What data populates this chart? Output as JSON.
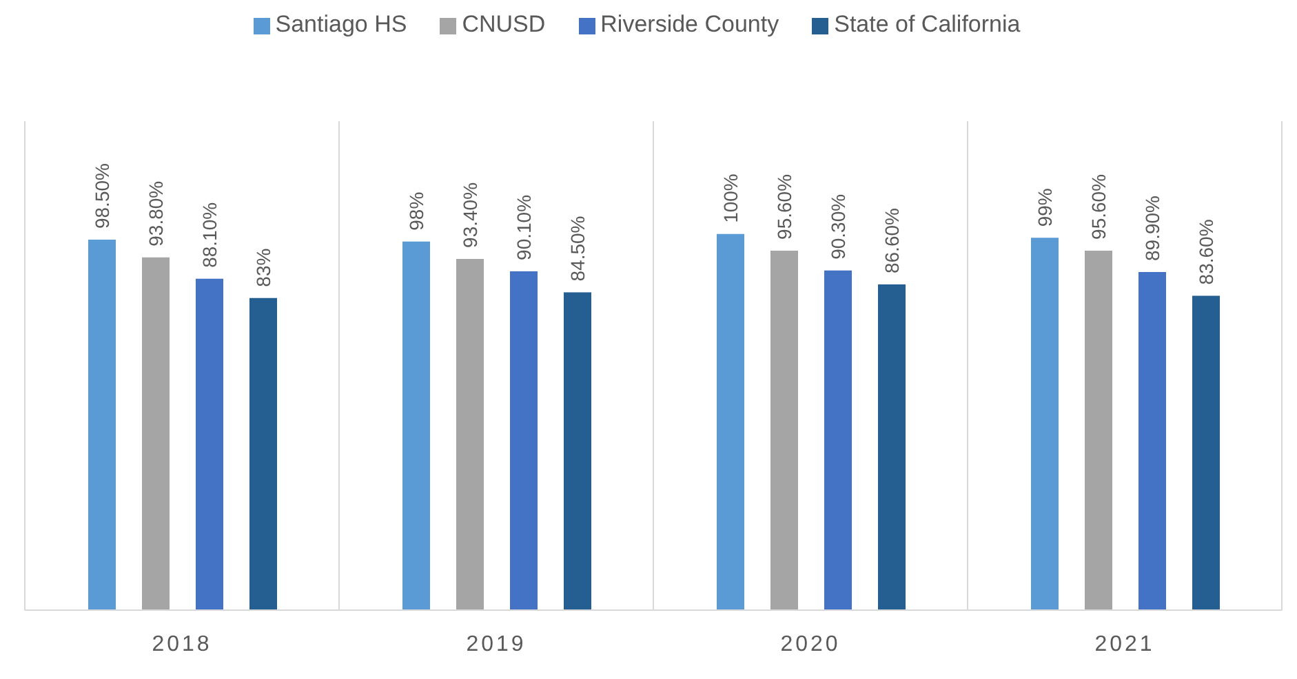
{
  "chart_data": {
    "type": "bar",
    "categories": [
      "2018",
      "2019",
      "2020",
      "2021"
    ],
    "series": [
      {
        "name": "Santiago HS",
        "color": "#5b9bd5",
        "values": [
          98.5,
          98,
          100,
          99
        ],
        "value_labels": [
          "98.50%",
          "98%",
          "100%",
          "99%"
        ]
      },
      {
        "name": "CNUSD",
        "color": "#a5a5a5",
        "values": [
          93.8,
          93.4,
          95.6,
          95.6
        ],
        "value_labels": [
          "93.80%",
          "93.40%",
          "95.60%",
          "95.60%"
        ]
      },
      {
        "name": "Riverside County",
        "color": "#4472c4",
        "values": [
          88.1,
          90.1,
          90.3,
          89.9
        ],
        "value_labels": [
          "88.10%",
          "90.10%",
          "90.30%",
          "89.90%"
        ]
      },
      {
        "name": "State of California",
        "color": "#255e91",
        "values": [
          83,
          84.5,
          86.6,
          83.6
        ],
        "value_labels": [
          "83%",
          "84.50%",
          "86.60%",
          "83.60%"
        ]
      }
    ],
    "grid": "x",
    "legend": "top",
    "tick_labels": "x"
  }
}
